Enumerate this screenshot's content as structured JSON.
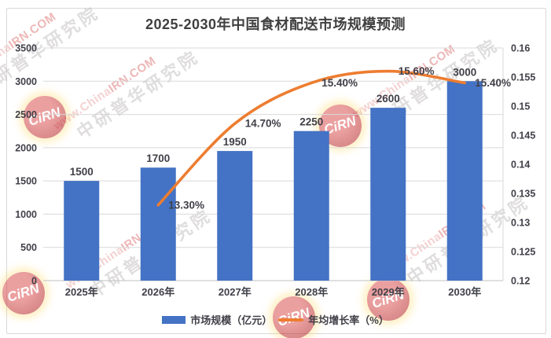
{
  "title": "2025-2030年中国食材配送市场规模预测",
  "colors": {
    "bar": "#4472C4",
    "line": "#ED7D31",
    "label_text": "#404049",
    "title_text": "#404040",
    "gridline": "#D9D9D9",
    "axis_line": "#C2C2C2",
    "border": "#D9D9D9"
  },
  "chart_data": {
    "type": "bar",
    "title": "2025-2030年中国食材配送市场规模预测",
    "categories": [
      "2025年",
      "2026年",
      "2027年",
      "2028年",
      "2029年",
      "2030年"
    ],
    "series": [
      {
        "name": "市场规模（亿元）",
        "type": "bar",
        "axis": "left",
        "values": [
          1500,
          1700,
          1950,
          2250,
          2600,
          3000
        ],
        "labels": [
          "1500",
          "1700",
          "1950",
          "2250",
          "2600",
          "3000"
        ]
      },
      {
        "name": "年均增长率（%）",
        "type": "line",
        "axis": "right",
        "smooth": true,
        "values": [
          null,
          0.133,
          0.147,
          0.154,
          0.156,
          0.154
        ],
        "labels": [
          null,
          "13.30%",
          "14.70%",
          "15.40%",
          "15.60%",
          "15.40%"
        ]
      }
    ],
    "left_axis": {
      "min": 0,
      "max": 3500,
      "step": 500,
      "ticks": [
        "0",
        "500",
        "1000",
        "1500",
        "2000",
        "2500",
        "3000",
        "3500"
      ]
    },
    "right_axis": {
      "min": 0.12,
      "max": 0.16,
      "step": 0.005,
      "ticks": [
        "0.12",
        "0.125",
        "0.13",
        "0.135",
        "0.14",
        "0.145",
        "0.15",
        "0.155",
        "0.16"
      ]
    },
    "grid": true,
    "legend_position": "bottom"
  },
  "legend": {
    "items": [
      {
        "label": "市场规模（亿元）",
        "swatch": "bar"
      },
      {
        "label": "年均增长率（%）",
        "swatch": "line"
      }
    ]
  },
  "watermark": {
    "url_prefix": "www.China",
    "url_suffix": "IRN.COM",
    "org": "中研普华研究院",
    "logo_text": "CiRN"
  }
}
